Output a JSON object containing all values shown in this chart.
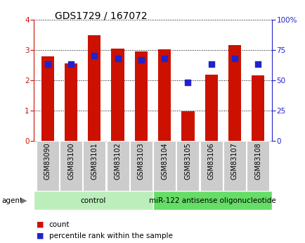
{
  "title": "GDS1729 / 167072",
  "samples": [
    "GSM83090",
    "GSM83100",
    "GSM83101",
    "GSM83102",
    "GSM83103",
    "GSM83104",
    "GSM83105",
    "GSM83106",
    "GSM83107",
    "GSM83108"
  ],
  "count_values": [
    2.78,
    2.55,
    3.48,
    3.03,
    2.94,
    3.02,
    0.97,
    2.18,
    3.16,
    2.16
  ],
  "percentile_values": [
    63,
    63,
    70,
    68,
    67,
    68,
    48,
    63,
    68,
    63
  ],
  "bar_color": "#CC1100",
  "dot_color": "#2222CC",
  "groups": [
    {
      "label": "control",
      "start": 0,
      "end": 5,
      "color": "#BBEEBB"
    },
    {
      "label": "miR-122 antisense oligonucleotide",
      "start": 5,
      "end": 10,
      "color": "#66DD66"
    }
  ],
  "left_ylim": [
    0,
    4
  ],
  "right_ylim": [
    0,
    100
  ],
  "left_yticks": [
    0,
    1,
    2,
    3,
    4
  ],
  "right_yticks": [
    0,
    25,
    50,
    75,
    100
  ],
  "right_yticklabels": [
    "0",
    "25",
    "50",
    "75",
    "100%"
  ],
  "left_ycolor": "#CC1100",
  "right_ycolor": "#2222CC",
  "bar_width": 0.55,
  "dot_size": 28,
  "agent_label": "agent",
  "legend_count_label": "count",
  "legend_percentile_label": "percentile rank within the sample",
  "sample_box_color": "#CCCCCC",
  "title_fontsize": 10,
  "tick_fontsize": 7.5,
  "label_fontsize": 7,
  "group_fontsize": 7.5
}
